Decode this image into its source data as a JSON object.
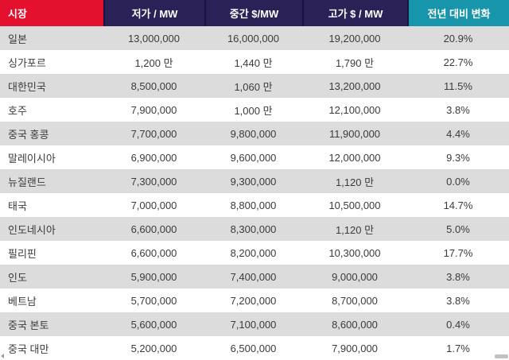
{
  "chart_data": {
    "type": "table",
    "columns": [
      {
        "label": "시장"
      },
      {
        "label": "저가 / MW"
      },
      {
        "label": "중간 $/MW"
      },
      {
        "label": "고가 $ / MW"
      },
      {
        "label": "전년 대비 변화"
      }
    ],
    "rows": [
      {
        "market": "일본",
        "low": "13,000,000",
        "mid": "16,000,000",
        "high": "19,200,000",
        "yoy": "20.9%"
      },
      {
        "market": "싱가포르",
        "low": "1,200 만",
        "mid": "1,440 만",
        "high": "1,790 만",
        "yoy": "22.7%"
      },
      {
        "market": "대한민국",
        "low": "8,500,000",
        "mid": "1,060 만",
        "high": "13,200,000",
        "yoy": "11.5%"
      },
      {
        "market": "호주",
        "low": "7,900,000",
        "mid": "1,000 만",
        "high": "12,100,000",
        "yoy": "3.8%"
      },
      {
        "market": "중국 홍콩",
        "low": "7,700,000",
        "mid": "9,800,000",
        "high": "11,900,000",
        "yoy": "4.4%"
      },
      {
        "market": "말레이시아",
        "low": "6,900,000",
        "mid": "9,600,000",
        "high": "12,000,000",
        "yoy": "9.3%"
      },
      {
        "market": "뉴질랜드",
        "low": "7,300,000",
        "mid": "9,300,000",
        "high": "1,120 만",
        "yoy": "0.0%"
      },
      {
        "market": "태국",
        "low": "7,000,000",
        "mid": "8,800,000",
        "high": "10,500,000",
        "yoy": "14.7%"
      },
      {
        "market": "인도네시아",
        "low": "6,600,000",
        "mid": "8,300,000",
        "high": "1,120 만",
        "yoy": "5.0%"
      },
      {
        "market": "필리핀",
        "low": "6,600,000",
        "mid": "8,200,000",
        "high": "10,300,000",
        "yoy": "17.7%"
      },
      {
        "market": "인도",
        "low": "5,900,000",
        "mid": "7,400,000",
        "high": "9,000,000",
        "yoy": "3.8%"
      },
      {
        "market": "베트남",
        "low": "5,700,000",
        "mid": "7,200,000",
        "high": "8,700,000",
        "yoy": "3.8%"
      },
      {
        "market": "중국 본토",
        "low": "5,600,000",
        "mid": "7,100,000",
        "high": "8,600,000",
        "yoy": "0.4%"
      },
      {
        "market": "중국 대만",
        "low": "5,200,000",
        "mid": "6,500,000",
        "high": "7,900,000",
        "yoy": "1.7%"
      }
    ]
  },
  "colors": {
    "market_header_bg": "#e3112d",
    "metric_header_bg": "#2a2156",
    "change_header_bg": "#1795ab",
    "header_divider": "#1a1440",
    "header_text": "#ffffff",
    "row_bg": "#ffffff",
    "row_alt_bg": "#dcdcdc",
    "body_text": "#3b3b3b",
    "scrollbar_thumb": "#c1c1c1"
  }
}
